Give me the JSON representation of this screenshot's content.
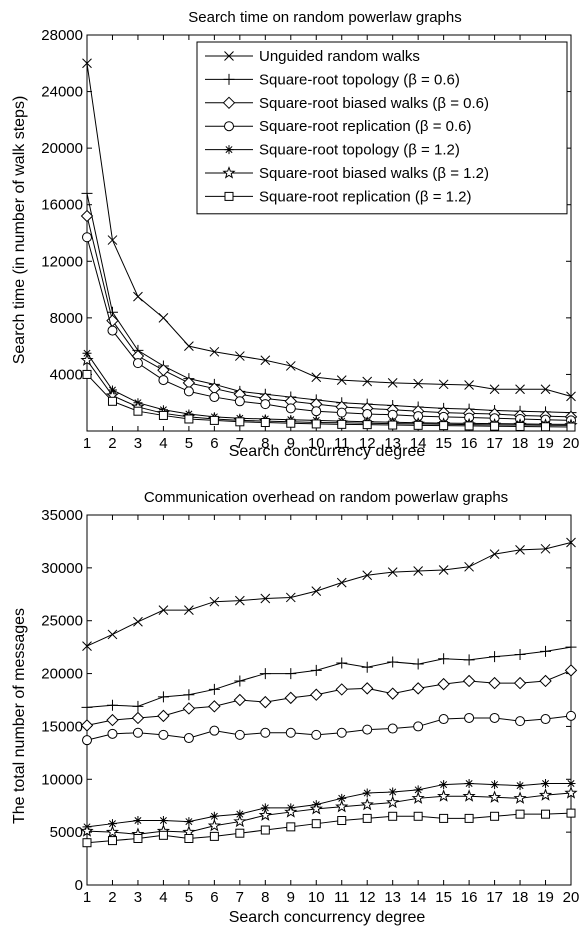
{
  "chart_data": [
    {
      "type": "line",
      "title": "Search time on random powerlaw graphs",
      "xlabel": "Search concurrency degree",
      "ylabel": "Search time (in number of walk steps)",
      "x": [
        1,
        2,
        3,
        4,
        5,
        6,
        7,
        8,
        9,
        10,
        11,
        12,
        13,
        14,
        15,
        16,
        17,
        18,
        19,
        20
      ],
      "xlim": [
        1,
        20
      ],
      "ylim": [
        0,
        28000
      ],
      "yticks": [
        4000,
        8000,
        12000,
        16000,
        20000,
        24000,
        28000
      ],
      "legend_position": "top-right",
      "grid": false,
      "series": [
        {
          "name": "Unguided random walks",
          "marker": "x",
          "values": [
            26000,
            13500,
            9500,
            8000,
            6000,
            5600,
            5300,
            5000,
            4600,
            3800,
            3600,
            3500,
            3400,
            3350,
            3300,
            3250,
            2950,
            2950,
            2950,
            2450
          ]
        },
        {
          "name": "Square-root topology (β = 0.6)",
          "marker": "plus",
          "values": [
            16800,
            8400,
            5700,
            4600,
            3700,
            3300,
            2800,
            2600,
            2400,
            2200,
            2000,
            1900,
            1800,
            1700,
            1600,
            1550,
            1450,
            1400,
            1350,
            1300
          ]
        },
        {
          "name": "Square-root biased walks (β = 0.6)",
          "marker": "diamond",
          "values": [
            15200,
            7800,
            5300,
            4300,
            3400,
            3000,
            2600,
            2300,
            2100,
            1900,
            1700,
            1600,
            1500,
            1400,
            1300,
            1250,
            1200,
            1100,
            1050,
            1000
          ]
        },
        {
          "name": "Square-root replication (β = 0.6)",
          "marker": "circle",
          "values": [
            13700,
            7100,
            4800,
            3600,
            2800,
            2400,
            2100,
            1900,
            1600,
            1400,
            1300,
            1200,
            1150,
            1050,
            1000,
            950,
            900,
            850,
            800,
            750
          ]
        },
        {
          "name": "Square-root topology (β = 1.2)",
          "marker": "star",
          "values": [
            5500,
            2900,
            2000,
            1500,
            1200,
            1000,
            900,
            850,
            800,
            750,
            700,
            650,
            620,
            580,
            560,
            540,
            520,
            500,
            480,
            470
          ]
        },
        {
          "name": "Square-root biased walks (β = 1.2)",
          "marker": "pentagram",
          "values": [
            5000,
            2500,
            1700,
            1250,
            1000,
            850,
            750,
            700,
            650,
            600,
            580,
            550,
            520,
            500,
            480,
            450,
            430,
            420,
            410,
            400
          ]
        },
        {
          "name": "Square-root replication (β = 1.2)",
          "marker": "square",
          "values": [
            4000,
            2100,
            1400,
            1100,
            850,
            750,
            650,
            600,
            550,
            500,
            470,
            450,
            420,
            400,
            380,
            360,
            340,
            320,
            300,
            280
          ]
        }
      ]
    },
    {
      "type": "line",
      "title": "Communication overhead on random powerlaw graphs",
      "xlabel": "Search concurrency degree",
      "ylabel": "The total number of messages",
      "x": [
        1,
        2,
        3,
        4,
        5,
        6,
        7,
        8,
        9,
        10,
        11,
        12,
        13,
        14,
        15,
        16,
        17,
        18,
        19,
        20
      ],
      "xlim": [
        1,
        20
      ],
      "ylim": [
        0,
        35000
      ],
      "yticks": [
        0,
        5000,
        10000,
        15000,
        20000,
        25000,
        30000,
        35000
      ],
      "grid": false,
      "series": [
        {
          "marker": "x",
          "values": [
            22600,
            23700,
            24900,
            26000,
            26000,
            26800,
            26900,
            27100,
            27200,
            27800,
            28600,
            29300,
            29600,
            29700,
            29800,
            30100,
            31300,
            31700,
            31800,
            32400
          ]
        },
        {
          "marker": "plus",
          "values": [
            16800,
            17000,
            16900,
            17800,
            18000,
            18500,
            19300,
            20000,
            20000,
            20300,
            21000,
            20600,
            21100,
            20900,
            21400,
            21300,
            21600,
            21800,
            22100,
            22500
          ]
        },
        {
          "marker": "diamond",
          "values": [
            15100,
            15600,
            15800,
            16000,
            16700,
            16900,
            17500,
            17300,
            17700,
            18000,
            18500,
            18600,
            18100,
            18600,
            19000,
            19300,
            19100,
            19100,
            19300,
            20300
          ]
        },
        {
          "marker": "circle",
          "values": [
            13700,
            14300,
            14400,
            14200,
            13900,
            14600,
            14200,
            14400,
            14400,
            14200,
            14400,
            14700,
            14800,
            15000,
            15700,
            15800,
            15800,
            15500,
            15700,
            16000
          ]
        },
        {
          "marker": "star",
          "values": [
            5500,
            5800,
            6100,
            6100,
            6000,
            6500,
            6700,
            7300,
            7300,
            7600,
            8200,
            8700,
            8800,
            9000,
            9500,
            9600,
            9500,
            9400,
            9600,
            9600
          ]
        },
        {
          "marker": "pentagram",
          "values": [
            5100,
            5000,
            4800,
            5100,
            5000,
            5600,
            6000,
            6600,
            6900,
            7200,
            7400,
            7600,
            7800,
            8200,
            8400,
            8400,
            8300,
            8200,
            8500,
            8700
          ]
        },
        {
          "marker": "square",
          "values": [
            4000,
            4200,
            4400,
            4700,
            4400,
            4600,
            4900,
            5200,
            5500,
            5800,
            6100,
            6300,
            6500,
            6500,
            6300,
            6300,
            6500,
            6700,
            6700,
            6800
          ]
        }
      ]
    }
  ]
}
